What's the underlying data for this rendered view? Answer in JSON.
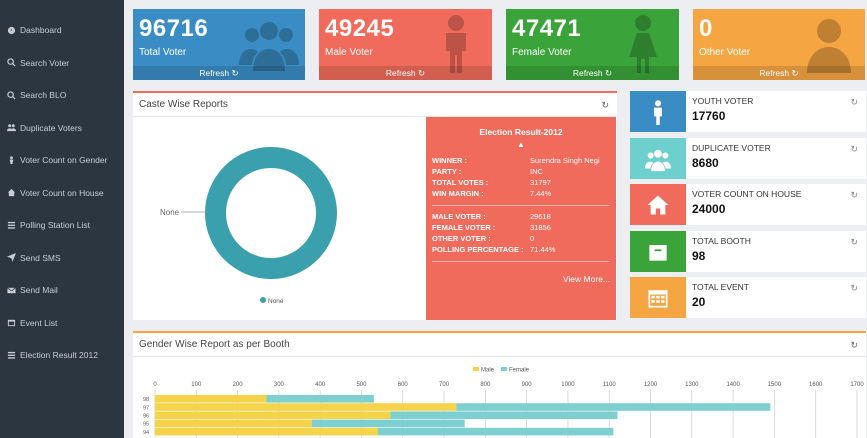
{
  "sidebar": {
    "items": [
      {
        "label": "Dashboard",
        "icon": "dashboard-icon"
      },
      {
        "label": "Search Voter",
        "icon": "search-icon"
      },
      {
        "label": "Search BLO",
        "icon": "search-icon"
      },
      {
        "label": "Duplicate Voters",
        "icon": "users-icon"
      },
      {
        "label": "Voter Count on Gender",
        "icon": "gender-icon"
      },
      {
        "label": "Voter Count on House",
        "icon": "house-icon"
      },
      {
        "label": "Polling Station List",
        "icon": "list-icon"
      },
      {
        "label": "Send SMS",
        "icon": "send-icon"
      },
      {
        "label": "Send Mail",
        "icon": "mail-icon"
      },
      {
        "label": "Event List",
        "icon": "calendar-icon"
      },
      {
        "label": "Election Result 2012",
        "icon": "list-icon"
      }
    ]
  },
  "tiles": [
    {
      "value": "96716",
      "label": "Total Voter",
      "refresh": "Refresh",
      "color": "#3a8dc4",
      "icon": "group-icon"
    },
    {
      "value": "49245",
      "label": "Male Voter",
      "refresh": "Refresh",
      "color": "#f06b5c",
      "icon": "male-icon"
    },
    {
      "value": "47471",
      "label": "Female Voter",
      "refresh": "Refresh",
      "color": "#3aa33a",
      "icon": "female-icon"
    },
    {
      "value": "0",
      "label": "Other Voter",
      "refresh": "Refresh",
      "color": "#f5a542",
      "icon": "person-icon"
    }
  ],
  "caste_panel": {
    "title": "Caste Wise Reports"
  },
  "election": {
    "title": "Election Result-2012",
    "rows1": [
      {
        "k": "WINNER :",
        "v": "Surendra Singh Negi"
      },
      {
        "k": "PARTY :",
        "v": "INC"
      },
      {
        "k": "TOTAL VOTES :",
        "v": "31797"
      },
      {
        "k": "WIN MARGIN :",
        "v": "7.44%"
      }
    ],
    "rows2": [
      {
        "k": "MALE VOTER :",
        "v": "29618"
      },
      {
        "k": "FEMALE VOTER :",
        "v": "31856"
      },
      {
        "k": "OTHER VOTER :",
        "v": "0"
      },
      {
        "k": "POLLING PERCENTAGE :",
        "v": "71.44%"
      }
    ],
    "view_more": "View More..."
  },
  "mini_cards": [
    {
      "title": "YOUTH VOTER",
      "value": "17760",
      "color": "#3a8dc4",
      "icon": "youth-icon"
    },
    {
      "title": "DUPLICATE VOTER",
      "value": "8680",
      "color": "#6ecfcf",
      "icon": "group-icon"
    },
    {
      "title": "VOTER COUNT ON HOUSE",
      "value": "24000",
      "color": "#f06b5c",
      "icon": "house-icon"
    },
    {
      "title": "TOTAL BOOTH",
      "value": "98",
      "color": "#3aa33a",
      "icon": "booth-icon"
    },
    {
      "title": "TOTAL EVENT",
      "value": "20",
      "color": "#f5a542",
      "icon": "calendar-icon"
    }
  ],
  "gender_panel": {
    "title": "Gender Wise Report as per Booth"
  },
  "chart_data": [
    {
      "type": "pie",
      "title": "Caste Wise Reports",
      "labels": [
        "None"
      ],
      "values": [
        100
      ],
      "colors": [
        "#3aa0ad"
      ],
      "legend": [
        "None"
      ]
    },
    {
      "type": "bar",
      "orientation": "horizontal",
      "stacked": true,
      "title": "Gender Wise Report as per Booth",
      "categories": [
        "98",
        "97",
        "96",
        "95",
        "94"
      ],
      "series": [
        {
          "name": "Male",
          "color": "#f5d44a",
          "values": [
            270,
            730,
            570,
            380,
            540
          ]
        },
        {
          "name": "Female",
          "color": "#7ecfcf",
          "values": [
            260,
            760,
            550,
            370,
            570
          ]
        }
      ],
      "xlim": [
        0,
        1700
      ],
      "xticks": [
        0,
        100,
        200,
        300,
        400,
        500,
        600,
        700,
        800,
        900,
        1000,
        1100,
        1200,
        1300,
        1400,
        1500,
        1600,
        1700
      ]
    }
  ]
}
